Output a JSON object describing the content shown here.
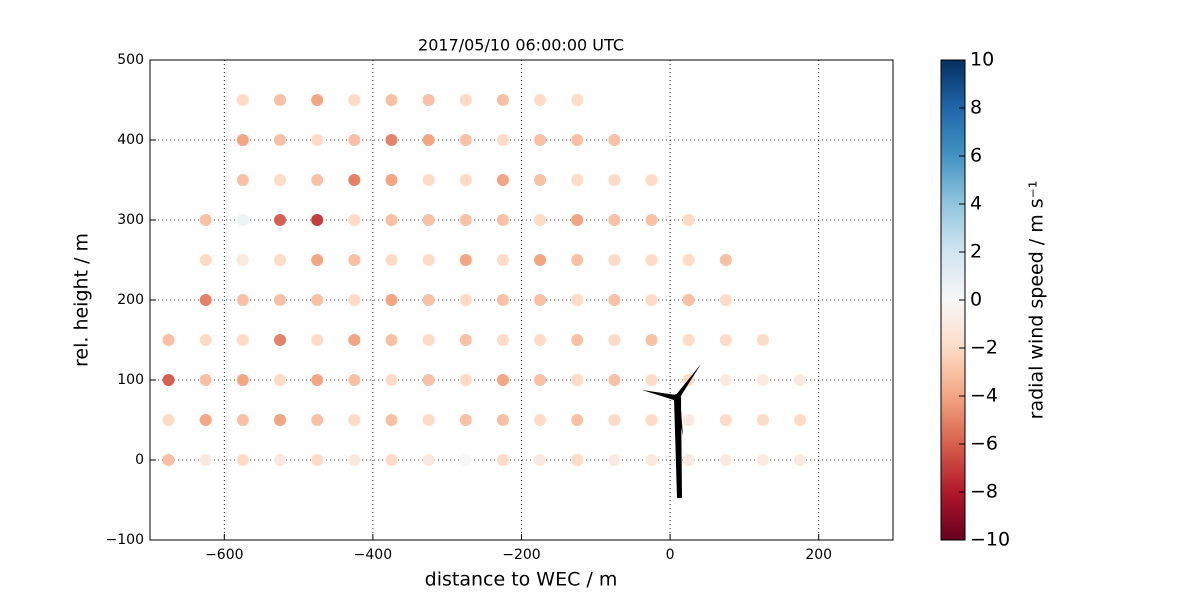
{
  "chart_data": {
    "type": "scatter",
    "title": "2017/05/10 06:00:00 UTC",
    "xlabel": "distance to WEC / m",
    "ylabel": "rel. height / m",
    "colorbar_label": "radial wind speed / m s⁻¹",
    "xlim": [
      -700,
      300
    ],
    "ylim": [
      -100,
      500
    ],
    "clim": [
      -10,
      10
    ],
    "xticks": [
      {
        "value": -600,
        "label": "−600"
      },
      {
        "value": -400,
        "label": "−400"
      },
      {
        "value": -200,
        "label": "−200"
      },
      0,
      200
    ],
    "yticks": [
      {
        "value": -100,
        "label": "−100"
      },
      0,
      100,
      200,
      300,
      400,
      500
    ],
    "cticks": [
      {
        "value": -10,
        "label": "−10"
      },
      {
        "value": -8,
        "label": "−8"
      },
      {
        "value": -6,
        "label": "−6"
      },
      {
        "value": -4,
        "label": "−4"
      },
      {
        "value": -2,
        "label": "−2"
      },
      0,
      2,
      4,
      6,
      8,
      10
    ],
    "grid": true,
    "colormap": [
      "#67001f",
      "#b2182b",
      "#d6604d",
      "#f4a582",
      "#fddbc7",
      "#f7f7f7",
      "#d1e5f0",
      "#92c5de",
      "#4393c3",
      "#2166ac",
      "#053061"
    ],
    "x": [
      -675,
      -675,
      -675,
      -675,
      -625,
      -625,
      -625,
      -625,
      -625,
      -625,
      -625,
      -575,
      -575,
      -575,
      -575,
      -575,
      -575,
      -575,
      -575,
      -575,
      -575,
      -525,
      -525,
      -525,
      -525,
      -525,
      -525,
      -525,
      -525,
      -525,
      -525,
      -475,
      -475,
      -475,
      -475,
      -475,
      -475,
      -475,
      -475,
      -475,
      -475,
      -425,
      -425,
      -425,
      -425,
      -425,
      -425,
      -425,
      -425,
      -425,
      -425,
      -375,
      -375,
      -375,
      -375,
      -375,
      -375,
      -375,
      -375,
      -375,
      -375,
      -325,
      -325,
      -325,
      -325,
      -325,
      -325,
      -325,
      -325,
      -325,
      -325,
      -275,
      -275,
      -275,
      -275,
      -275,
      -275,
      -275,
      -275,
      -275,
      -275,
      -225,
      -225,
      -225,
      -225,
      -225,
      -225,
      -225,
      -225,
      -225,
      -225,
      -175,
      -175,
      -175,
      -175,
      -175,
      -175,
      -175,
      -175,
      -175,
      -175,
      -125,
      -125,
      -125,
      -125,
      -125,
      -125,
      -125,
      -125,
      -125,
      -125,
      -75,
      -75,
      -75,
      -75,
      -75,
      -75,
      -75,
      -75,
      -75,
      -25,
      -25,
      -25,
      -25,
      -25,
      -25,
      -25,
      -25,
      25,
      25,
      25,
      25,
      25,
      25,
      25,
      75,
      75,
      75,
      75,
      75,
      75,
      125,
      125,
      125,
      125,
      175,
      175,
      175
    ],
    "y": [
      0,
      50,
      100,
      150,
      0,
      50,
      100,
      150,
      200,
      250,
      300,
      0,
      50,
      100,
      150,
      200,
      250,
      300,
      350,
      400,
      450,
      0,
      50,
      100,
      150,
      200,
      250,
      300,
      350,
      400,
      450,
      0,
      50,
      100,
      150,
      200,
      250,
      300,
      350,
      400,
      450,
      0,
      50,
      100,
      150,
      200,
      250,
      300,
      350,
      400,
      450,
      0,
      50,
      100,
      150,
      200,
      250,
      300,
      350,
      400,
      450,
      0,
      50,
      100,
      150,
      200,
      250,
      300,
      350,
      400,
      450,
      0,
      50,
      100,
      150,
      200,
      250,
      300,
      350,
      400,
      450,
      0,
      50,
      100,
      150,
      200,
      250,
      300,
      350,
      400,
      450,
      0,
      50,
      100,
      150,
      200,
      250,
      300,
      350,
      400,
      450,
      0,
      50,
      100,
      150,
      200,
      250,
      300,
      350,
      400,
      450,
      0,
      50,
      100,
      150,
      200,
      250,
      300,
      350,
      400,
      0,
      50,
      100,
      150,
      200,
      250,
      300,
      350,
      0,
      50,
      100,
      150,
      200,
      250,
      300,
      0,
      50,
      100,
      150,
      200,
      250,
      0,
      50,
      100,
      150,
      0,
      50,
      100
    ],
    "values": [
      -3,
      -2,
      -6,
      -3,
      -1,
      -4,
      -3,
      -2,
      -5,
      -2,
      -3,
      -2,
      -3,
      -4,
      -2,
      -3,
      -1,
      0.5,
      -3,
      -4,
      -2,
      -1,
      -4,
      -2,
      -5,
      -3,
      -2,
      -6,
      -2,
      -3,
      -3,
      -2,
      -3,
      -4,
      -2,
      -3,
      -4,
      -7,
      -3,
      -2,
      -4,
      -1,
      -2,
      -3,
      -4,
      -2,
      -3,
      -2,
      -5,
      -3,
      -2,
      -2,
      -3,
      -2,
      -3,
      -4,
      -2,
      -3,
      -4,
      -5,
      -3,
      -1,
      -2,
      -3,
      -2,
      -3,
      -2,
      -3,
      -2,
      -4,
      -3,
      0,
      -3,
      -2,
      -3,
      -2,
      -4,
      -3,
      -2,
      -3,
      -2,
      -2,
      -3,
      -4,
      -2,
      -3,
      -2,
      -3,
      -4,
      -2,
      -3,
      -1,
      -2,
      -3,
      -2,
      -3,
      -4,
      -2,
      -3,
      -3,
      -2,
      -2,
      -3,
      -2,
      -3,
      -2,
      -3,
      -4,
      -2,
      -3,
      -2,
      -1,
      -2,
      -3,
      -2,
      -3,
      -2,
      -3,
      -2,
      -3,
      -1,
      -2,
      -2,
      -3,
      -2,
      -2,
      -3,
      -2,
      -1,
      -1,
      -2,
      -2,
      -3,
      -2,
      -2,
      -1,
      -2,
      -1,
      -2,
      -2,
      -3,
      -1,
      -2,
      -1,
      -2,
      -1,
      -2,
      -1
    ]
  }
}
